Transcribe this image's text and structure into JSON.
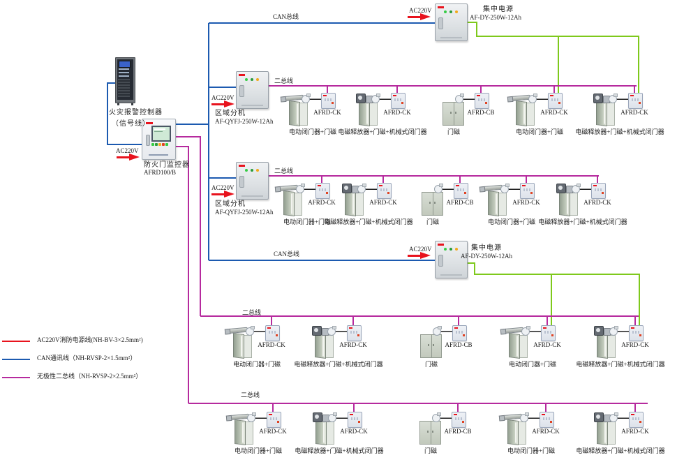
{
  "colors": {
    "power_red": "#e8131d",
    "can_blue": "#1c5ab0",
    "two_bus_magenta": "#b62a9e",
    "dc_green": "#7ec91c",
    "connector_black": "#1c1c1c"
  },
  "labels": {
    "ac220v": "AC220V",
    "can_bus": "CAN总线",
    "two_bus": "二总线"
  },
  "equipment": {
    "fire_alarm_controller": {
      "name": "火灾报警控制器",
      "note": "（信号线）"
    },
    "fire_door_monitor": {
      "name": "防火门监控器",
      "model": "AFRD100/B"
    },
    "zone_units": [
      {
        "name": "区域分机",
        "model": "AF-QYFJ-250W-12Ah"
      },
      {
        "name": "区域分机",
        "model": "AF-QYFJ-250W-12Ah"
      }
    ],
    "power_supplies": [
      {
        "name": "集中电源",
        "model": "AF-DY-250W-12Ah"
      },
      {
        "name": "集中电源",
        "model": "AF-DY-250W-12Ah"
      }
    ]
  },
  "rows": [
    {
      "devices": [
        {
          "kind": "closer",
          "module": "AFRD-CK",
          "label": "电动闭门器+门磁"
        },
        {
          "kind": "release",
          "module": "AFRD-CK",
          "label": "电磁释放器+门磁+机械式闭门器"
        },
        {
          "kind": "magnet",
          "module": "AFRD-CB",
          "label": "门磁"
        },
        {
          "kind": "closer",
          "module": "AFRD-CK",
          "label": "电动闭门器+门磁"
        },
        {
          "kind": "release",
          "module": "AFRD-CK",
          "label": "电磁释放器+门磁+机械式闭门器"
        }
      ]
    },
    {
      "devices": [
        {
          "kind": "closer",
          "module": "AFRD-CK",
          "label": "电动闭门器+门磁"
        },
        {
          "kind": "release",
          "module": "AFRD-CK",
          "label": "电磁释放器+门磁+机械式闭门器"
        },
        {
          "kind": "magnet",
          "module": "AFRD-CB",
          "label": "门磁"
        },
        {
          "kind": "closer",
          "module": "AFRD-CK",
          "label": "电动闭门器+门磁"
        },
        {
          "kind": "release",
          "module": "AFRD-CK",
          "label": "电磁释放器+门磁+机械式闭门器"
        }
      ]
    },
    {
      "devices": [
        {
          "kind": "closer",
          "module": "AFRD-CK",
          "label": "电动闭门器+门磁"
        },
        {
          "kind": "release",
          "module": "AFRD-CK",
          "label": "电磁释放器+门磁+机械式闭门器"
        },
        {
          "kind": "magnet",
          "module": "AFRD-CB",
          "label": "门磁"
        },
        {
          "kind": "closer",
          "module": "AFRD-CK",
          "label": "电动闭门器+门磁"
        },
        {
          "kind": "release",
          "module": "AFRD-CK",
          "label": "电磁释放器+门磁+机械式闭门器"
        }
      ]
    },
    {
      "devices": [
        {
          "kind": "closer",
          "module": "AFRD-CK",
          "label": "电动闭门器+门磁"
        },
        {
          "kind": "release",
          "module": "AFRD-CK",
          "label": "电磁释放器+门磁+机械式闭门器"
        },
        {
          "kind": "magnet",
          "module": "AFRD-CB",
          "label": "门磁"
        },
        {
          "kind": "closer",
          "module": "AFRD-CK",
          "label": "电动闭门器+门磁"
        },
        {
          "kind": "release",
          "module": "AFRD-CK",
          "label": "电磁释放器+门磁+机械式闭门器"
        }
      ]
    }
  ],
  "legend": [
    {
      "color": "#e8131d",
      "label": "AC220V消防电源线(NH-BV-3×2.5mm²)"
    },
    {
      "color": "#1c5ab0",
      "label": "CAN通讯线（NH-RVSP-2×1.5mm²）"
    },
    {
      "color": "#b62a9e",
      "label": "无极性二总线（NH-RVSP-2×2.5mm²）"
    }
  ]
}
